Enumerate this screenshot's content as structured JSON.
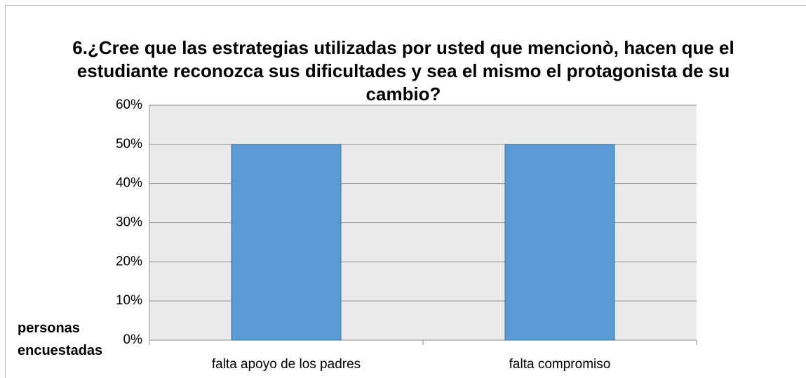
{
  "chart_data": {
    "type": "bar",
    "title": "6.¿Cree que las estrategias utilizadas por usted que mencionò, hacen que el estudiante reconozca sus dificultades y sea el mismo el protagonista de su cambio?",
    "y_label": "personas encuestadas",
    "categories": [
      "falta apoyo de los padres",
      "falta compromiso"
    ],
    "values": [
      50,
      50
    ],
    "color": "#5b9bd5",
    "ylim": [
      0,
      60
    ],
    "yticks": [
      {
        "value": 0,
        "label": "0%"
      },
      {
        "value": 10,
        "label": "10%"
      },
      {
        "value": 20,
        "label": "20%"
      },
      {
        "value": 30,
        "label": "30%"
      },
      {
        "value": 40,
        "label": "40%"
      },
      {
        "value": 50,
        "label": "50%"
      },
      {
        "value": 60,
        "label": "60%"
      }
    ],
    "grid": true
  }
}
